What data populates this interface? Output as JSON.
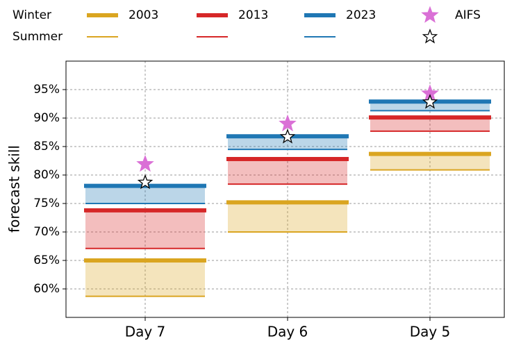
{
  "chart_data": {
    "type": "band-lines",
    "ylabel": "forecast skill",
    "categories": [
      "Day 7",
      "Day 6",
      "Day 5"
    ],
    "legend_rows": [
      "Winter",
      "Summer"
    ],
    "ylim": [
      55,
      100
    ],
    "yticks": [
      {
        "value": 60,
        "label": "60%"
      },
      {
        "value": 65,
        "label": "65%"
      },
      {
        "value": 70,
        "label": "70%"
      },
      {
        "value": 75,
        "label": "75%"
      },
      {
        "value": 80,
        "label": "80%"
      },
      {
        "value": 85,
        "label": "85%"
      },
      {
        "value": 90,
        "label": "90%"
      },
      {
        "value": 95,
        "label": "95%"
      }
    ],
    "grid": true,
    "series": [
      {
        "name": "2003",
        "color": "#daa520",
        "winter": [
          65.0,
          75.2,
          83.7
        ],
        "summer": [
          58.7,
          70.0,
          80.9
        ]
      },
      {
        "name": "2013",
        "color": "#d62728",
        "winter": [
          73.8,
          82.8,
          90.1
        ],
        "summer": [
          67.1,
          78.4,
          87.7
        ]
      },
      {
        "name": "2023",
        "color": "#1f77b4",
        "winter": [
          78.1,
          86.8,
          92.9
        ],
        "summer": [
          75.0,
          84.5,
          91.3
        ]
      }
    ],
    "aifs": {
      "name": "AIFS",
      "color": "#da70d6",
      "winter": [
        81.9,
        89.0,
        94.3
      ],
      "summer": [
        78.7,
        86.7,
        92.8
      ]
    }
  }
}
